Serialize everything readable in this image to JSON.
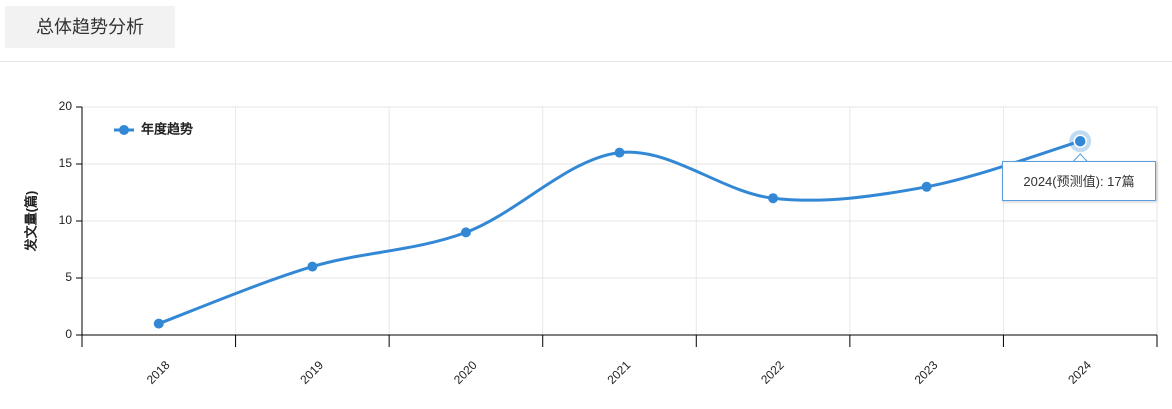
{
  "header": {
    "title": "总体趋势分析"
  },
  "chart_data": {
    "type": "line",
    "smooth": true,
    "y_label": "发文量(篇)",
    "categories": [
      "2018",
      "2019",
      "2020",
      "2021",
      "2022",
      "2023",
      "2024"
    ],
    "series": [
      {
        "name": "年度趋势",
        "color": "#3388d6",
        "values": [
          1,
          6,
          9,
          16,
          12,
          13,
          17
        ]
      }
    ],
    "ylim": [
      0,
      20
    ],
    "yticks": [
      0,
      5,
      10,
      15,
      20
    ],
    "grid": true,
    "legend": "top-left",
    "tooltip": "2024(预测值): 17篇"
  }
}
